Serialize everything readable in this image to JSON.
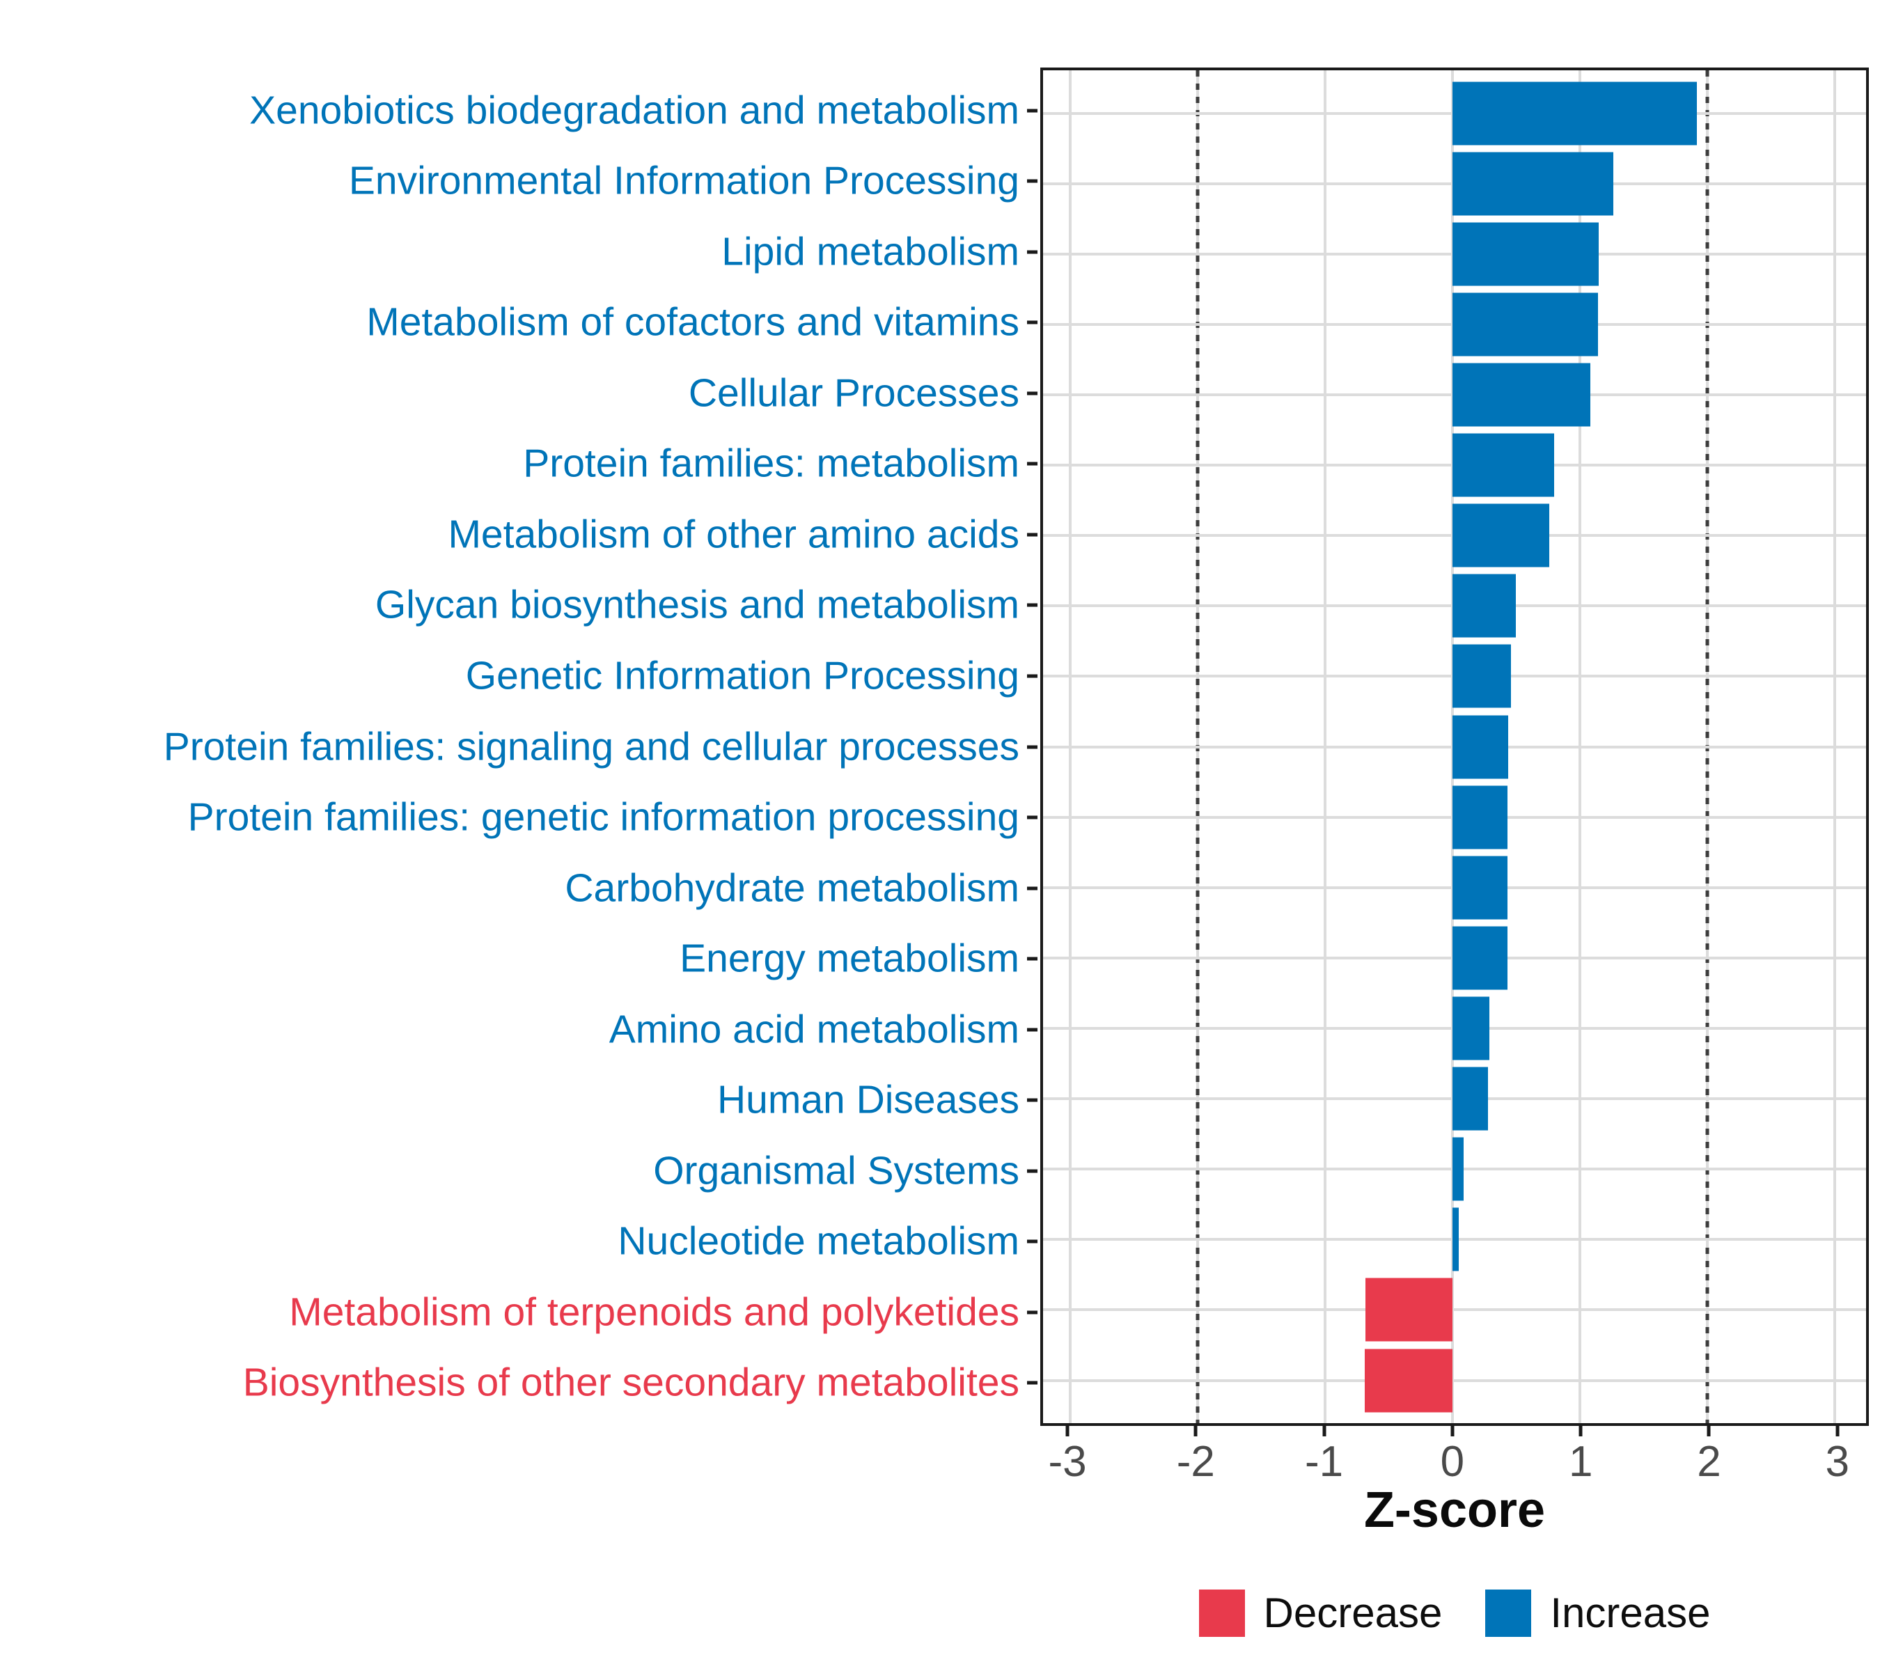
{
  "chart_data": {
    "type": "bar",
    "orientation": "horizontal",
    "title": "",
    "xlabel": "Z-score",
    "ylabel": "",
    "xlim": [
      -3.21,
      3.21
    ],
    "x_ticks": [
      -3,
      -2,
      -1,
      0,
      1,
      2,
      3
    ],
    "reference_lines": [
      -2,
      2
    ],
    "grid": true,
    "legend_position": "bottom",
    "categories": [
      "Xenobiotics biodegradation and metabolism",
      "Environmental Information Processing",
      "Lipid metabolism",
      "Metabolism of cofactors and vitamins",
      "Cellular Processes",
      "Protein families: metabolism",
      "Metabolism of other amino acids",
      "Glycan biosynthesis and metabolism",
      "Genetic Information Processing",
      "Protein families: signaling and cellular processes",
      "Protein families: genetic information processing",
      "Carbohydrate metabolism",
      "Energy metabolism",
      "Amino acid metabolism",
      "Human Diseases",
      "Organismal Systems",
      "Nucleotide metabolism",
      "Metabolism of terpenoids and polyketides",
      "Biosynthesis of other secondary metabolites"
    ],
    "values": [
      1.92,
      1.26,
      1.15,
      1.14,
      1.08,
      0.8,
      0.76,
      0.5,
      0.46,
      0.44,
      0.43,
      0.43,
      0.43,
      0.29,
      0.28,
      0.09,
      0.05,
      -0.68,
      -0.69
    ],
    "groups": [
      "Increase",
      "Increase",
      "Increase",
      "Increase",
      "Increase",
      "Increase",
      "Increase",
      "Increase",
      "Increase",
      "Increase",
      "Increase",
      "Increase",
      "Increase",
      "Increase",
      "Increase",
      "Increase",
      "Increase",
      "Decrease",
      "Decrease"
    ]
  },
  "legend": {
    "items": [
      {
        "label": "Decrease",
        "color": "#E83A4C"
      },
      {
        "label": "Increase",
        "color": "#0074B8"
      }
    ]
  },
  "colors": {
    "increase": "#0074B8",
    "decrease": "#E83A4C",
    "grid": "#DCDCDC",
    "axis_text": "#4A4A4A",
    "axis_line": "#1A1A1A",
    "reference_line": "#3C3C3C",
    "background": "#FFFFFF"
  }
}
